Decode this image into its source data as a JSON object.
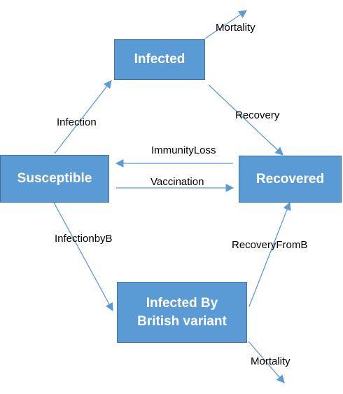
{
  "nodes": {
    "infected": "Infected",
    "susceptible": "Susceptible",
    "recovered": "Recovered",
    "infected_b_line1": "Infected By",
    "infected_b_line2": "British variant"
  },
  "edges": {
    "mortality_top": "Mortality",
    "infection": "Infection",
    "recovery": "Recovery",
    "immunity_loss": "ImmunityLoss",
    "vaccination": "Vaccination",
    "infection_by_b": "InfectionbyB",
    "recovery_from_b": "RecoveryFromB",
    "mortality_bottom": "Mortality"
  },
  "colors": {
    "node_fill": "#5b9bd5",
    "node_border": "#41719c",
    "arrow": "#5b9bd5"
  }
}
